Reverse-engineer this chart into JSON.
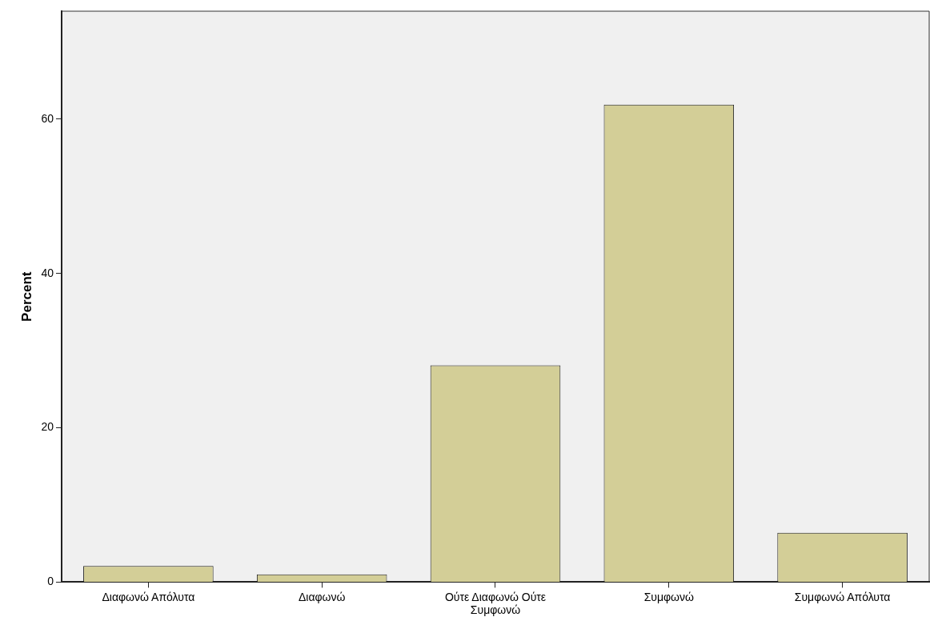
{
  "chart_data": {
    "type": "bar",
    "ylabel": "Percent",
    "categories": [
      "Διαφωνώ Απόλυτα",
      "Διαφωνώ",
      "Ούτε Διαφωνώ Ούτε Συμφωνώ",
      "Συμφωνώ",
      "Συμφωνώ Απόλυτα"
    ],
    "values": [
      2.1,
      1.0,
      28.1,
      61.9,
      6.4
    ],
    "color": "#d3ce97",
    "ylim": [
      0,
      74
    ],
    "yticks": [
      0,
      20,
      40,
      60
    ],
    "grid": false,
    "legend": false
  }
}
